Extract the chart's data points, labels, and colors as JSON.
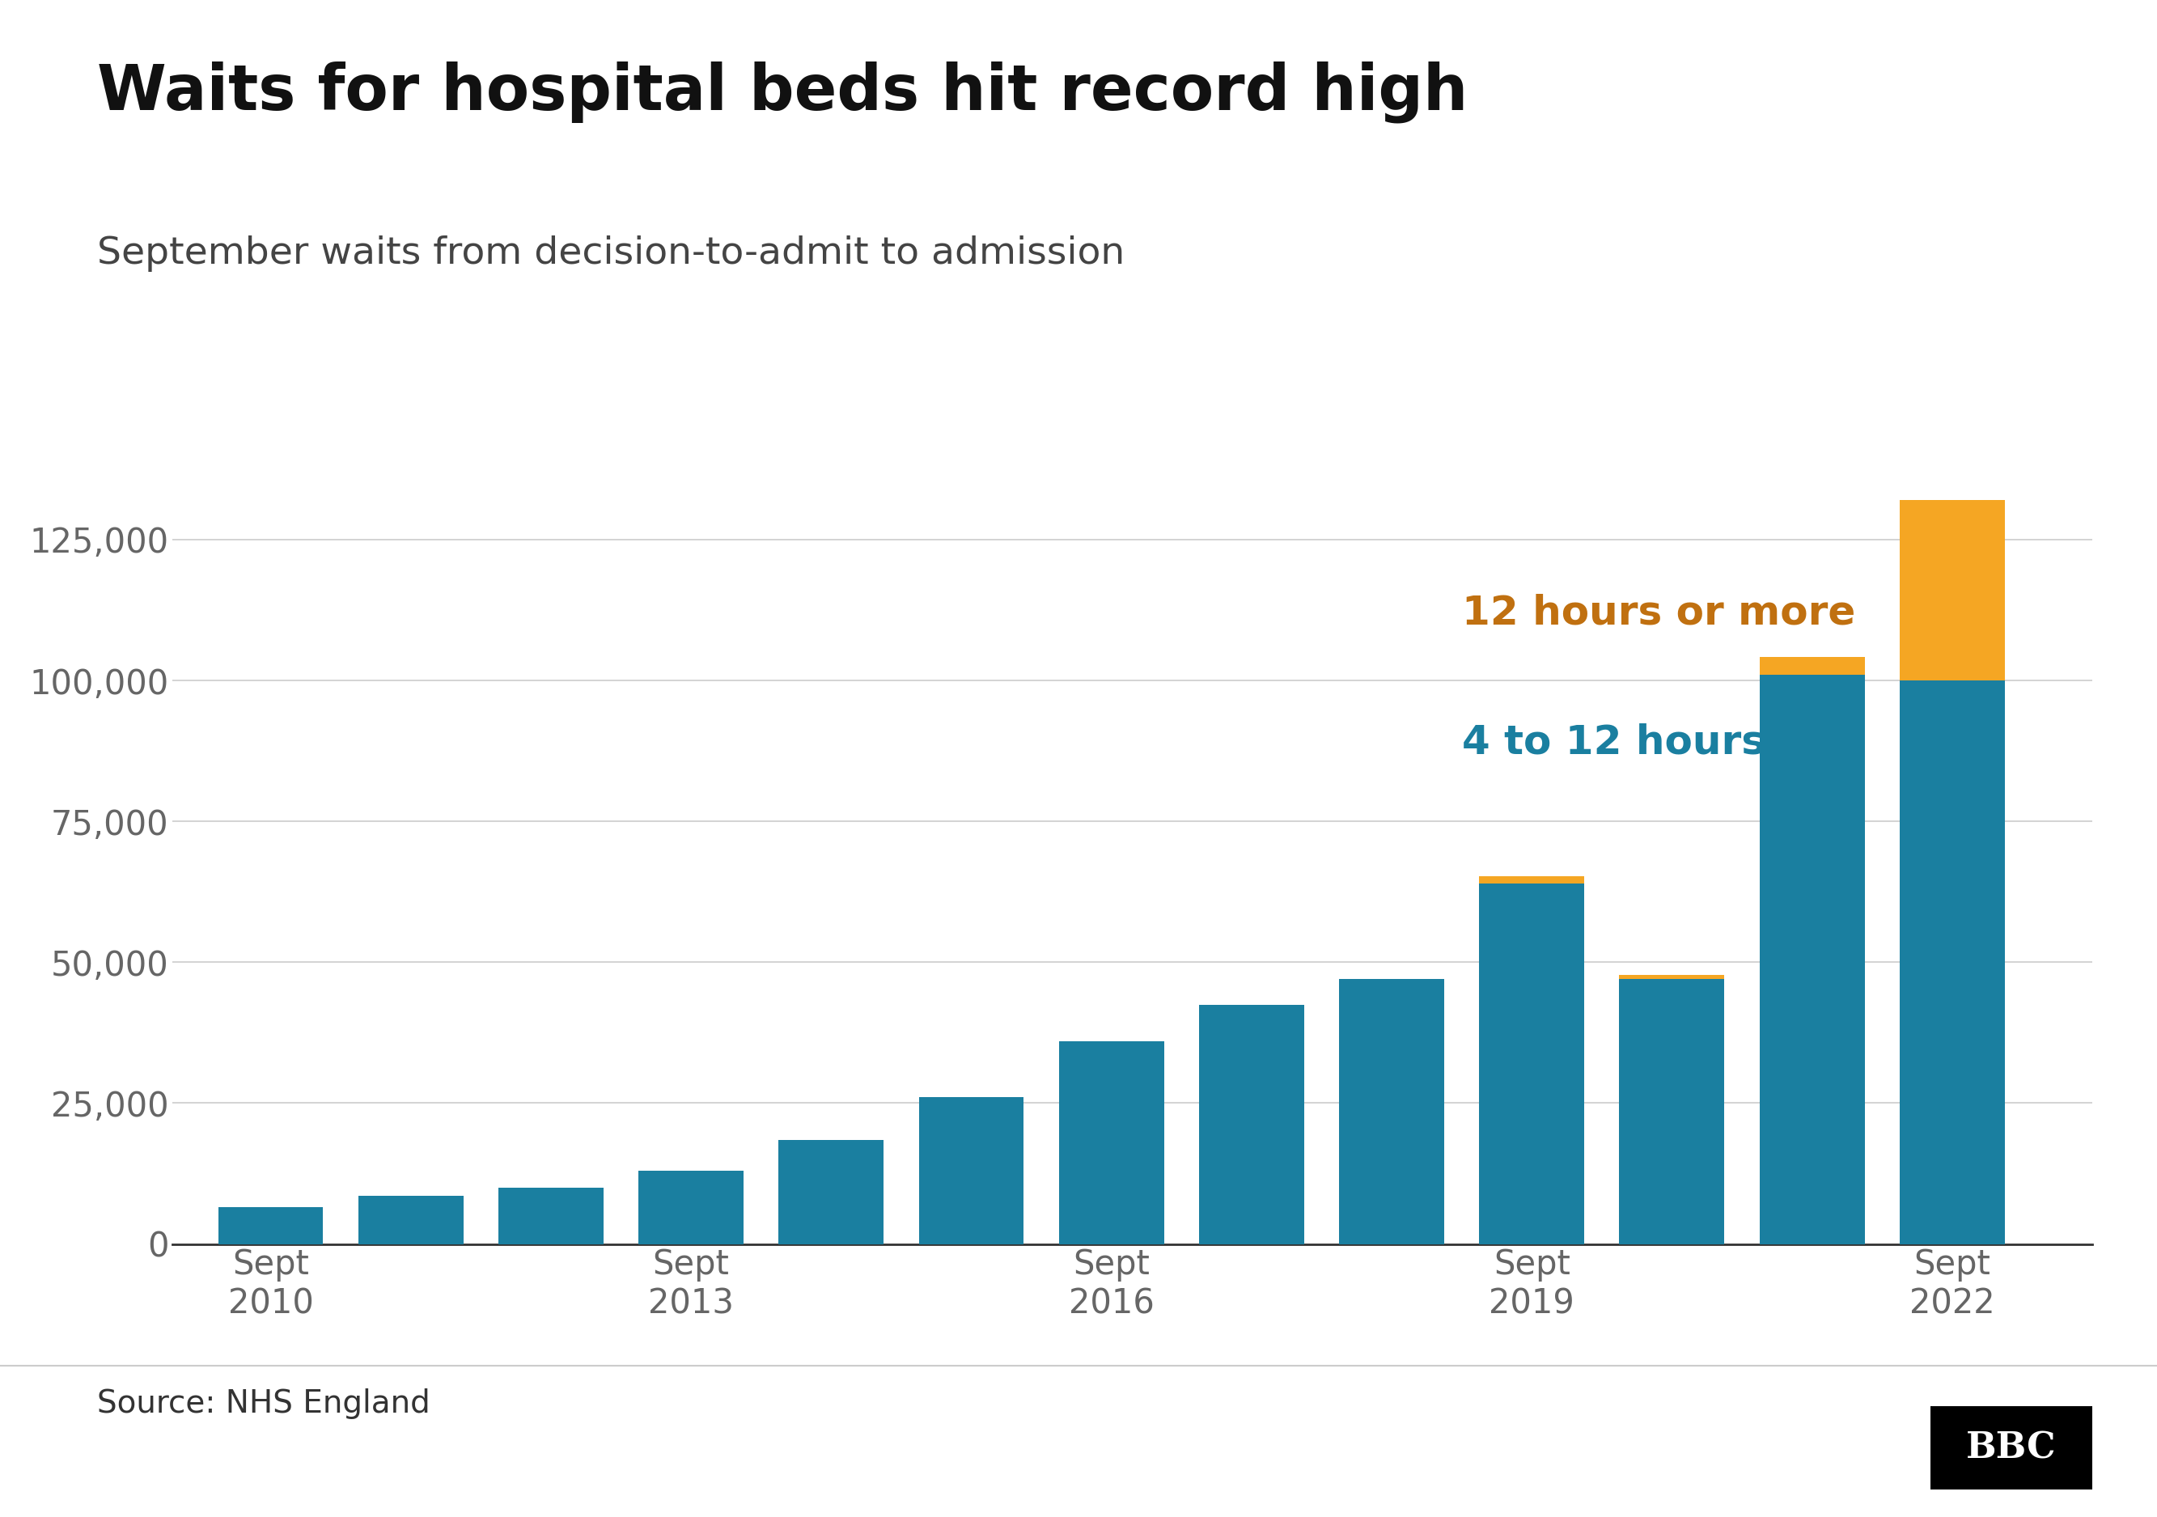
{
  "title": "Waits for hospital beds hit record high",
  "subtitle": "September waits from decision-to-admit to admission",
  "source": "Source: NHS England",
  "years": [
    2010,
    2011,
    2012,
    2013,
    2014,
    2015,
    2016,
    2017,
    2018,
    2019,
    2020,
    2021,
    2022
  ],
  "teal_values": [
    6500,
    8500,
    10000,
    13000,
    18500,
    26000,
    36000,
    42500,
    47000,
    64000,
    47000,
    101000,
    100000
  ],
  "orange_values": [
    0,
    0,
    0,
    0,
    0,
    0,
    0,
    0,
    0,
    1200,
    800,
    3200,
    32000
  ],
  "teal_color": "#1a7fa0",
  "orange_color": "#f5a623",
  "label_teal": "4 to 12 hours",
  "label_orange": "12 hours or more",
  "label_teal_color": "#1a7fa0",
  "label_orange_color": "#c07010",
  "xlabel_ticks": [
    2010,
    2013,
    2016,
    2019,
    2022
  ],
  "xlabel_labels": [
    "Sept\n2010",
    "Sept\n2013",
    "Sept\n2016",
    "Sept\n2019",
    "Sept\n2022"
  ],
  "ylim": [
    0,
    140000
  ],
  "yticks": [
    0,
    25000,
    50000,
    75000,
    100000,
    125000
  ],
  "ytick_labels": [
    "0",
    "25,000",
    "50,000",
    "75,000",
    "100,000",
    "125,000"
  ],
  "background_color": "#ffffff",
  "title_fontsize": 56,
  "subtitle_fontsize": 34,
  "source_fontsize": 28,
  "tick_fontsize": 30,
  "label_fontsize": 36,
  "bar_width": 0.75
}
